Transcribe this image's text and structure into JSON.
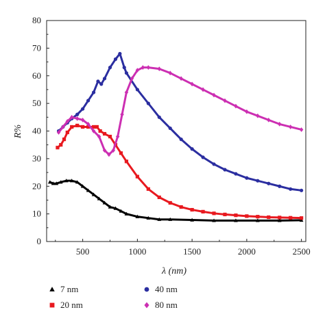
{
  "chart_data": {
    "type": "scatter",
    "title": "",
    "xlabel": "λ (nm)",
    "ylabel": "R%",
    "xlim": [
      170,
      2540
    ],
    "ylim": [
      0,
      80
    ],
    "xticks": [
      500,
      1000,
      1500,
      2000,
      2500
    ],
    "yticks": [
      0,
      10,
      20,
      30,
      40,
      50,
      60,
      70,
      80
    ],
    "grid": false,
    "legend_position": "bottom",
    "series": [
      {
        "name": "7 nm",
        "color": "#000000",
        "marker": "triangle",
        "points": [
          [
            200,
            21.5
          ],
          [
            230,
            21.0
          ],
          [
            260,
            21.0
          ],
          [
            300,
            21.5
          ],
          [
            350,
            22.0
          ],
          [
            400,
            22.0
          ],
          [
            450,
            21.5
          ],
          [
            500,
            20.0
          ],
          [
            550,
            18.5
          ],
          [
            600,
            17.0
          ],
          [
            650,
            15.5
          ],
          [
            700,
            14.0
          ],
          [
            750,
            12.5
          ],
          [
            800,
            12.0
          ],
          [
            850,
            11.0
          ],
          [
            900,
            10.0
          ],
          [
            1000,
            9.0
          ],
          [
            1100,
            8.5
          ],
          [
            1200,
            8.0
          ],
          [
            1300,
            8.0
          ],
          [
            1500,
            7.8
          ],
          [
            1700,
            7.6
          ],
          [
            1900,
            7.6
          ],
          [
            2100,
            7.6
          ],
          [
            2300,
            7.6
          ],
          [
            2500,
            7.7
          ]
        ]
      },
      {
        "name": "20 nm",
        "color": "#e8191f",
        "marker": "square",
        "points": [
          [
            270,
            34.0
          ],
          [
            300,
            35.0
          ],
          [
            330,
            37.0
          ],
          [
            360,
            39.5
          ],
          [
            400,
            41.5
          ],
          [
            450,
            42.0
          ],
          [
            500,
            41.5
          ],
          [
            550,
            41.5
          ],
          [
            600,
            41.5
          ],
          [
            630,
            41.5
          ],
          [
            660,
            40.0
          ],
          [
            700,
            39.0
          ],
          [
            750,
            38.0
          ],
          [
            800,
            35.0
          ],
          [
            850,
            32.0
          ],
          [
            900,
            29.0
          ],
          [
            1000,
            23.5
          ],
          [
            1100,
            19.0
          ],
          [
            1200,
            16.0
          ],
          [
            1300,
            14.0
          ],
          [
            1400,
            12.5
          ],
          [
            1500,
            11.5
          ],
          [
            1600,
            10.8
          ],
          [
            1700,
            10.2
          ],
          [
            1800,
            9.8
          ],
          [
            1900,
            9.5
          ],
          [
            2000,
            9.2
          ],
          [
            2100,
            9.0
          ],
          [
            2200,
            8.8
          ],
          [
            2300,
            8.7
          ],
          [
            2400,
            8.6
          ],
          [
            2500,
            8.5
          ]
        ]
      },
      {
        "name": "40 nm",
        "color": "#2b2ea0",
        "marker": "circle",
        "points": [
          [
            280,
            40.0
          ],
          [
            320,
            41.5
          ],
          [
            360,
            43.0
          ],
          [
            400,
            44.5
          ],
          [
            450,
            46.0
          ],
          [
            500,
            48.0
          ],
          [
            550,
            51.0
          ],
          [
            600,
            54.0
          ],
          [
            640,
            58.0
          ],
          [
            670,
            57.0
          ],
          [
            700,
            59.0
          ],
          [
            750,
            63.0
          ],
          [
            800,
            66.0
          ],
          [
            840,
            68.0
          ],
          [
            880,
            63.0
          ],
          [
            900,
            61.0
          ],
          [
            1000,
            55.0
          ],
          [
            1100,
            50.0
          ],
          [
            1200,
            45.0
          ],
          [
            1300,
            41.0
          ],
          [
            1400,
            37.0
          ],
          [
            1500,
            33.5
          ],
          [
            1600,
            30.5
          ],
          [
            1700,
            28.0
          ],
          [
            1800,
            26.0
          ],
          [
            1900,
            24.5
          ],
          [
            2000,
            23.0
          ],
          [
            2100,
            22.0
          ],
          [
            2200,
            21.0
          ],
          [
            2300,
            20.0
          ],
          [
            2400,
            19.0
          ],
          [
            2500,
            18.5
          ]
        ]
      },
      {
        "name": "80 nm",
        "color": "#cc2fb2",
        "marker": "diamond",
        "points": [
          [
            280,
            39.5
          ],
          [
            320,
            41.5
          ],
          [
            360,
            43.5
          ],
          [
            400,
            45.0
          ],
          [
            450,
            44.5
          ],
          [
            500,
            44.0
          ],
          [
            550,
            42.5
          ],
          [
            600,
            40.0
          ],
          [
            650,
            38.0
          ],
          [
            700,
            33.0
          ],
          [
            740,
            31.5
          ],
          [
            780,
            33.0
          ],
          [
            820,
            38.0
          ],
          [
            860,
            46.0
          ],
          [
            900,
            54.0
          ],
          [
            950,
            59.0
          ],
          [
            1000,
            62.0
          ],
          [
            1050,
            63.0
          ],
          [
            1100,
            63.0
          ],
          [
            1200,
            62.5
          ],
          [
            1300,
            61.0
          ],
          [
            1400,
            59.0
          ],
          [
            1500,
            57.0
          ],
          [
            1600,
            55.0
          ],
          [
            1700,
            53.0
          ],
          [
            1800,
            51.0
          ],
          [
            1900,
            49.0
          ],
          [
            2000,
            47.0
          ],
          [
            2100,
            45.5
          ],
          [
            2200,
            44.0
          ],
          [
            2300,
            42.5
          ],
          [
            2400,
            41.5
          ],
          [
            2500,
            40.5
          ]
        ]
      }
    ]
  }
}
